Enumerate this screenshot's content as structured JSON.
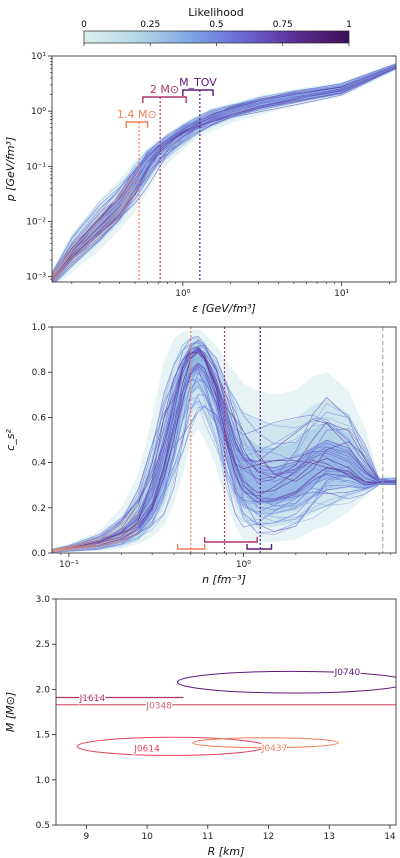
{
  "colorbar": {
    "title": "Likelihood",
    "ticks": [
      "0",
      "0.25",
      "0.5",
      "0.75",
      "1"
    ],
    "colors": [
      "#dcefee",
      "#b6d8e6",
      "#7fa6e6",
      "#6b67d6",
      "#5b2f93",
      "#3e0f55"
    ]
  },
  "chart_data": [
    {
      "type": "area",
      "panel": "top",
      "ylabel": "p [GeV/fm³]",
      "xlabel": "ε [GeV/fm³]",
      "xscale": "log",
      "yscale": "log",
      "xlim": [
        0.15,
        22
      ],
      "ylim": [
        0.0008,
        10
      ],
      "x_ticks": [
        {
          "v": 1,
          "label": "10⁰"
        },
        {
          "v": 10,
          "label": "10¹"
        }
      ],
      "y_ticks": [
        {
          "v": 0.001,
          "label": "10⁻³"
        },
        {
          "v": 0.01,
          "label": "10⁻²"
        },
        {
          "v": 0.1,
          "label": "10⁻¹"
        },
        {
          "v": 1,
          "label": "10⁰"
        },
        {
          "v": 10,
          "label": "10¹"
        }
      ],
      "band_median": {
        "x": [
          0.15,
          0.2,
          0.3,
          0.4,
          0.5,
          0.6,
          0.7,
          0.8,
          1.0,
          1.2,
          1.5,
          2,
          3,
          5,
          10,
          22
        ],
        "y": [
          0.0009,
          0.0025,
          0.008,
          0.018,
          0.05,
          0.12,
          0.2,
          0.27,
          0.42,
          0.55,
          0.75,
          1.0,
          1.35,
          1.8,
          2.5,
          6.5
        ]
      },
      "band_outer_low": [
        0.0006,
        0.0012,
        0.003,
        0.007,
        0.015,
        0.035,
        0.07,
        0.11,
        0.2,
        0.3,
        0.42,
        0.6,
        0.85,
        1.2,
        1.8,
        5.5
      ],
      "band_outer_high": [
        0.0013,
        0.006,
        0.025,
        0.06,
        0.13,
        0.22,
        0.3,
        0.4,
        0.62,
        0.8,
        1.1,
        1.4,
        1.9,
        2.5,
        3.4,
        7.5
      ],
      "markers": [
        {
          "label": "1.4 M⊙",
          "x": 0.53,
          "bracket": [
            0.44,
            0.6
          ],
          "color": "#f07f5b"
        },
        {
          "label": "2 M⊙",
          "x": 0.72,
          "bracket": [
            0.56,
            1.05
          ],
          "color": "#b0336a"
        },
        {
          "label": "M_TOV",
          "x": 1.28,
          "bracket": [
            1.0,
            1.55
          ],
          "color": "#5e1a7a"
        }
      ]
    },
    {
      "type": "area",
      "panel": "middle",
      "ylabel": "c_s²",
      "xlabel": "n [fm⁻³]",
      "xscale": "log",
      "yscale": "linear",
      "xlim": [
        0.08,
        7.5
      ],
      "ylim": [
        0,
        1
      ],
      "x_ticks": [
        {
          "v": 0.1,
          "label": "10⁻¹"
        },
        {
          "v": 1,
          "label": "10⁰"
        }
      ],
      "y_ticks": [
        {
          "v": 0,
          "label": "0.0"
        },
        {
          "v": 0.2,
          "label": "0.2"
        },
        {
          "v": 0.4,
          "label": "0.4"
        },
        {
          "v": 0.6,
          "label": "0.6"
        },
        {
          "v": 0.8,
          "label": "0.8"
        },
        {
          "v": 1,
          "label": "1.0"
        }
      ],
      "band_median": {
        "x": [
          0.08,
          0.1,
          0.15,
          0.2,
          0.25,
          0.3,
          0.35,
          0.4,
          0.45,
          0.5,
          0.55,
          0.6,
          0.7,
          0.8,
          0.9,
          1.0,
          1.2,
          1.5,
          2,
          2.5,
          3,
          4,
          5,
          6,
          7.5
        ],
        "y": [
          0.01,
          0.02,
          0.04,
          0.07,
          0.12,
          0.22,
          0.4,
          0.6,
          0.78,
          0.86,
          0.88,
          0.85,
          0.72,
          0.55,
          0.42,
          0.34,
          0.28,
          0.27,
          0.3,
          0.36,
          0.4,
          0.38,
          0.32,
          0.31,
          0.31
        ]
      },
      "band_outer_low": [
        0.0,
        0.005,
        0.01,
        0.02,
        0.04,
        0.07,
        0.12,
        0.22,
        0.35,
        0.5,
        0.55,
        0.5,
        0.38,
        0.22,
        0.12,
        0.06,
        0.04,
        0.05,
        0.06,
        0.1,
        0.12,
        0.18,
        0.25,
        0.3,
        0.3
      ],
      "band_outer_high": [
        0.02,
        0.04,
        0.1,
        0.2,
        0.35,
        0.6,
        0.85,
        0.95,
        0.98,
        0.99,
        0.99,
        0.97,
        0.92,
        0.85,
        0.8,
        0.75,
        0.72,
        0.7,
        0.72,
        0.78,
        0.8,
        0.72,
        0.55,
        0.34,
        0.34
      ],
      "dashed_line_x": 6.3,
      "markers": [
        {
          "x": 0.5,
          "bracket": [
            0.42,
            0.6
          ],
          "color": "#f07f5b"
        },
        {
          "x": 0.78,
          "bracket": [
            0.6,
            1.2
          ],
          "color": "#b0336a"
        },
        {
          "x": 1.25,
          "bracket": [
            1.05,
            1.45
          ],
          "color": "#5e1a7a"
        }
      ]
    },
    {
      "type": "area",
      "panel": "bottom",
      "ylabel": "M [M⊙]",
      "xlabel": "R [km]",
      "xscale": "linear",
      "yscale": "linear",
      "xlim": [
        8.5,
        14.1
      ],
      "ylim": [
        0.5,
        3.0
      ],
      "x_ticks": [
        {
          "v": 9,
          "label": "9"
        },
        {
          "v": 10,
          "label": "10"
        },
        {
          "v": 11,
          "label": "11"
        },
        {
          "v": 12,
          "label": "12"
        },
        {
          "v": 13,
          "label": "13"
        },
        {
          "v": 14,
          "label": "14"
        }
      ],
      "y_ticks": [
        {
          "v": 0.5,
          "label": "0.5"
        },
        {
          "v": 1.0,
          "label": "1.0"
        },
        {
          "v": 1.5,
          "label": "1.5"
        },
        {
          "v": 2.0,
          "label": "2.0"
        },
        {
          "v": 2.5,
          "label": "2.5"
        },
        {
          "v": 3.0,
          "label": "3.0"
        }
      ],
      "constraints": [
        {
          "label": "J0740",
          "type": "ellipse",
          "cx": 12.4,
          "cy": 2.08,
          "rx": 1.9,
          "ry": 0.12,
          "color": "#5e1a7a",
          "label_x": 13.3,
          "label_y": 2.2
        },
        {
          "label": "J1614",
          "type": "hline",
          "y": 1.91,
          "x_end": 10.6,
          "color": "#b0336a",
          "label_x": 9.1,
          "label_y": 1.91
        },
        {
          "label": "J0348",
          "type": "hline",
          "y": 1.83,
          "x_end": 14.1,
          "color": "#d9607a",
          "label_x": 10.2,
          "label_y": 1.83
        },
        {
          "label": "J0614",
          "type": "ellipse",
          "cx": 10.4,
          "cy": 1.37,
          "rx": 1.55,
          "ry": 0.1,
          "color": "#e8405a",
          "label_x": 10.0,
          "label_y": 1.35
        },
        {
          "label": "J0437",
          "type": "ellipse",
          "cx": 11.95,
          "cy": 1.41,
          "rx": 1.2,
          "ry": 0.055,
          "color": "#f07f5b",
          "label_x": 12.1,
          "label_y": 1.36
        }
      ]
    }
  ]
}
